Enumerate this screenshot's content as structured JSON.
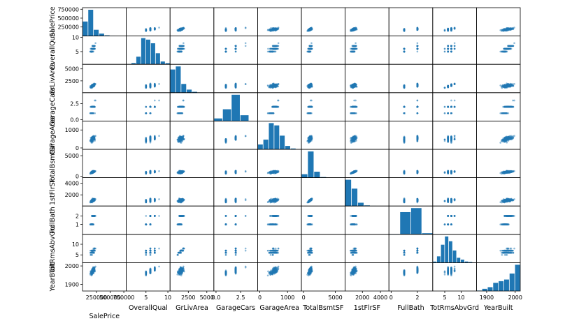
{
  "chart_data": {
    "type": "scatter",
    "title": "",
    "colors": {
      "marker": "#1f77b4",
      "axis": "#000000",
      "background": "#ffffff"
    },
    "variables": [
      {
        "name": "SalePrice",
        "range": [
          35000,
          755000
        ],
        "xticks": [
          {
            "v": 250000,
            "label": "250000"
          },
          {
            "v": 500000,
            "label": "500000"
          },
          {
            "v": 750000,
            "label": "750000"
          }
        ],
        "yticks": [
          {
            "v": 250000,
            "label": "250000"
          },
          {
            "v": 500000,
            "label": "500000"
          },
          {
            "v": 750000,
            "label": "750000"
          }
        ],
        "hist": [
          420,
          760,
          180,
          70,
          20,
          6,
          3,
          1
        ]
      },
      {
        "name": "OverallQual",
        "range": [
          1,
          10
        ],
        "xticks": [
          {
            "v": 5,
            "label": "5"
          },
          {
            "v": 10,
            "label": "10"
          }
        ],
        "yticks": [
          {
            "v": 5,
            "label": "5"
          },
          {
            "v": 10,
            "label": "10"
          }
        ],
        "hist": [
          3,
          20,
          116,
          397,
          374,
          319,
          168,
          43,
          18
        ]
      },
      {
        "name": "GrLivArea",
        "range": [
          330,
          5650
        ],
        "xticks": [
          {
            "v": 2500,
            "label": "2500"
          },
          {
            "v": 5000,
            "label": "5000"
          }
        ],
        "yticks": [
          {
            "v": 2500,
            "label": "2500"
          },
          {
            "v": 5000,
            "label": "5000"
          }
        ],
        "hist": [
          530,
          600,
          200,
          70,
          20,
          5,
          2,
          1
        ]
      },
      {
        "name": "GarageCars",
        "range": [
          0,
          4
        ],
        "xticks": [
          {
            "v": 0,
            "label": "0.0"
          },
          {
            "v": 2.5,
            "label": "2.5"
          }
        ],
        "yticks": [
          {
            "v": 0,
            "label": "0.0"
          },
          {
            "v": 2.5,
            "label": "2.5"
          }
        ],
        "hist": [
          81,
          369,
          824,
          181,
          5
        ]
      },
      {
        "name": "GarageArea",
        "range": [
          0,
          1420
        ],
        "xticks": [
          {
            "v": 0,
            "label": "0"
          },
          {
            "v": 1000,
            "label": "1000"
          }
        ],
        "yticks": [
          {
            "v": 0,
            "label": "0"
          },
          {
            "v": 1000,
            "label": "1000"
          }
        ],
        "hist": [
          85,
          170,
          460,
          420,
          240,
          60,
          15,
          5
        ]
      },
      {
        "name": "TotalBsmtSF",
        "range": [
          0,
          6200
        ],
        "xticks": [
          {
            "v": 0,
            "label": "0"
          },
          {
            "v": 5000,
            "label": "5000"
          }
        ],
        "yticks": [
          {
            "v": 0,
            "label": "0"
          },
          {
            "v": 5000,
            "label": "5000"
          }
        ],
        "hist": [
          140,
          1050,
          240,
          25,
          3,
          1,
          1
        ]
      },
      {
        "name": "1stFlrSF",
        "range": [
          330,
          4700
        ],
        "xticks": [
          {
            "v": 2000,
            "label": "2000"
          },
          {
            "v": 4000,
            "label": "4000"
          }
        ],
        "yticks": [
          {
            "v": 2000,
            "label": "2000"
          },
          {
            "v": 4000,
            "label": "4000"
          }
        ],
        "hist": [
          800,
          530,
          100,
          20,
          5,
          2,
          1
        ]
      },
      {
        "name": "FullBath",
        "range": [
          0,
          3
        ],
        "xticks": [
          {
            "v": 0,
            "label": "0"
          },
          {
            "v": 2,
            "label": "2"
          }
        ],
        "yticks": [
          {
            "v": 1,
            "label": "1"
          },
          {
            "v": 2,
            "label": "2"
          }
        ],
        "hist": [
          9,
          650,
          768,
          33
        ]
      },
      {
        "name": "TotRmsAbvGrd",
        "range": [
          2,
          14
        ],
        "xticks": [
          {
            "v": 5,
            "label": "5"
          },
          {
            "v": 10,
            "label": "10"
          }
        ],
        "yticks": [
          {
            "v": 5,
            "label": "5"
          },
          {
            "v": 10,
            "label": "10"
          }
        ],
        "hist": [
          17,
          97,
          275,
          402,
          329,
          187,
          75,
          47,
          18,
          11,
          2
        ]
      },
      {
        "name": "YearBuilt",
        "range": [
          1872,
          2010
        ],
        "xticks": [
          {
            "v": 1900,
            "label": "1900"
          },
          {
            "v": 2000,
            "label": "2000"
          }
        ],
        "yticks": [
          {
            "v": 1900,
            "label": "1900"
          },
          {
            "v": 2000,
            "label": "2000"
          }
        ],
        "hist": [
          8,
          40,
          70,
          150,
          180,
          210,
          320,
          480
        ]
      }
    ]
  }
}
